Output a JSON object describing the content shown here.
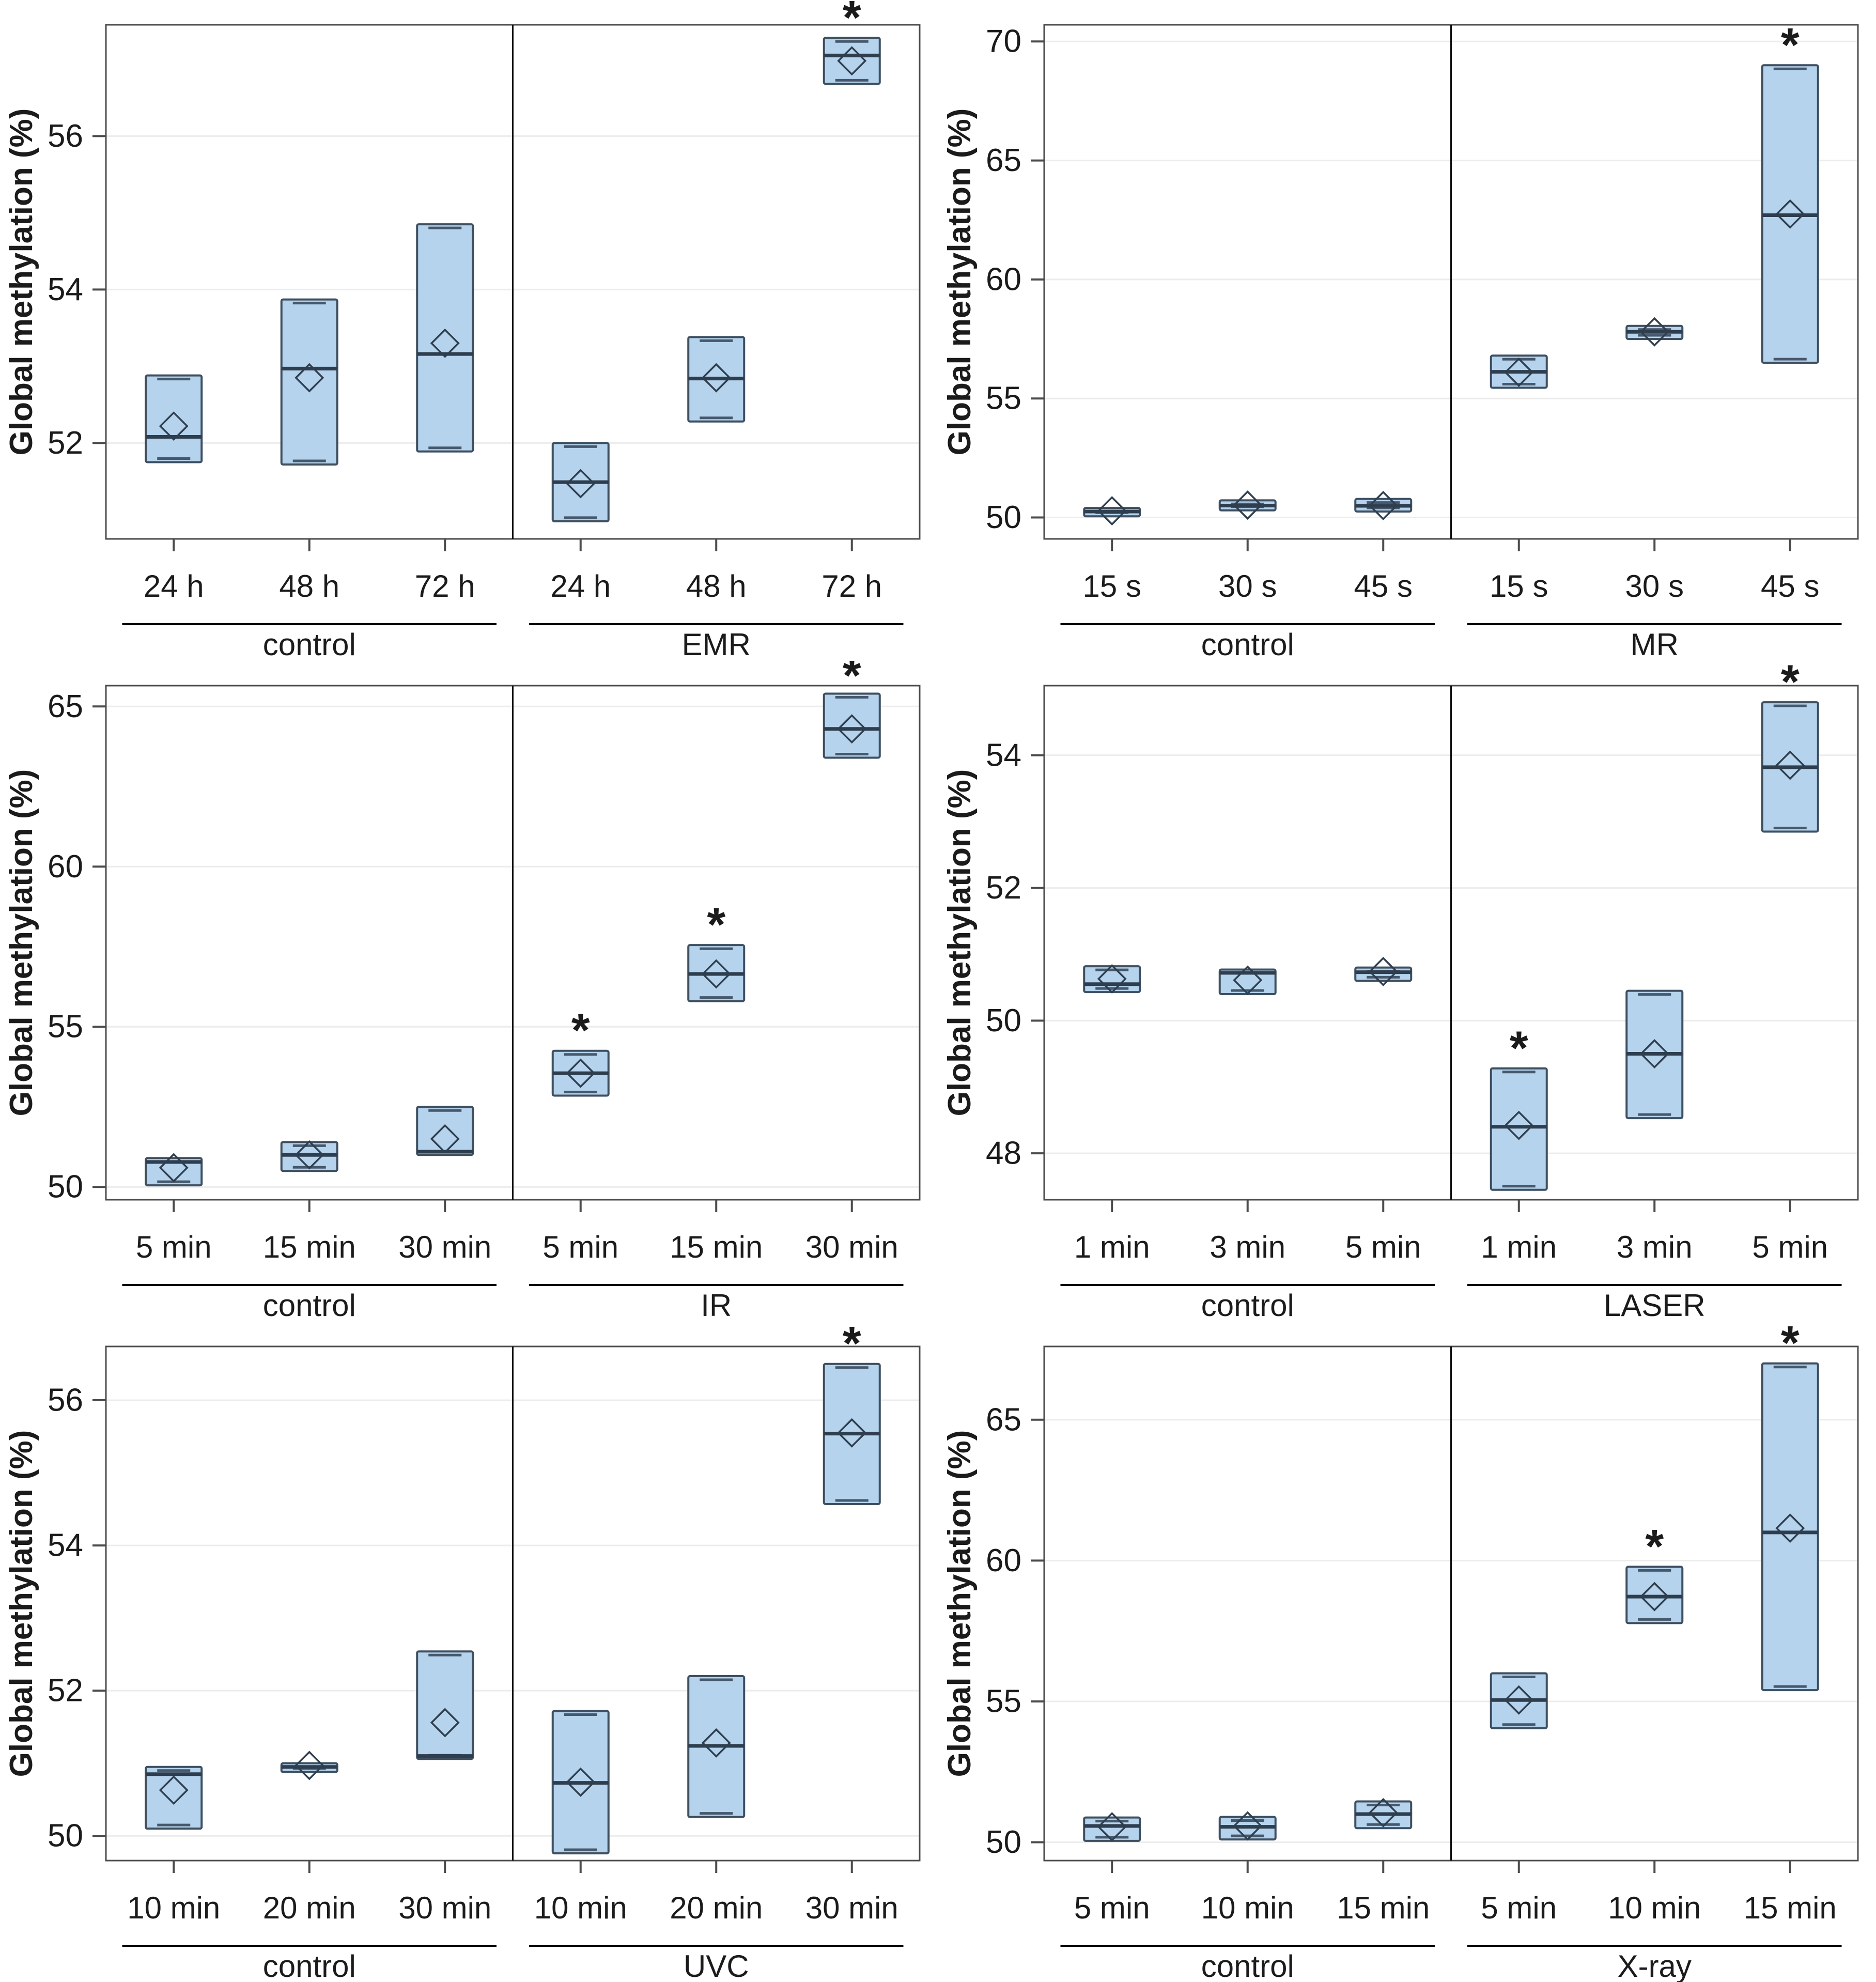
{
  "page": {
    "background": "#ffffff"
  },
  "style": {
    "box_fill": "#b5d3ed",
    "box_stroke": "#3e4f60",
    "median_color": "#2e3e4e",
    "whisker_color": "#46586c",
    "mean_marker": "diamond-outline",
    "grid_color": "#ececec",
    "frame_color": "#4c4c4c",
    "separator_color": "#111111",
    "text_color": "#1b1b1b",
    "sig_marker": "*"
  },
  "chart_data": [
    {
      "type": "box",
      "id": "emr",
      "ylabel": "Global methylation (%)",
      "yticks": [
        52,
        54,
        56
      ],
      "ylim": [
        50.75,
        57.45
      ],
      "grid": true,
      "groups": [
        {
          "label": "control",
          "categories": [
            "24 h",
            "48 h",
            "72 h"
          ]
        },
        {
          "label": "EMR",
          "categories": [
            "24 h",
            "48 h",
            "72 h"
          ]
        }
      ],
      "boxes": [
        {
          "group": "control",
          "category": "24 h",
          "low": 51.75,
          "median": 52.08,
          "high": 52.88,
          "mean": 52.22,
          "significant": false
        },
        {
          "group": "control",
          "category": "48 h",
          "low": 51.72,
          "median": 52.97,
          "high": 53.87,
          "mean": 52.85,
          "significant": false
        },
        {
          "group": "control",
          "category": "72 h",
          "low": 51.89,
          "median": 53.16,
          "high": 54.85,
          "mean": 53.3,
          "significant": false
        },
        {
          "group": "EMR",
          "category": "24 h",
          "low": 50.98,
          "median": 51.49,
          "high": 52.0,
          "mean": 51.47,
          "significant": false
        },
        {
          "group": "EMR",
          "category": "48 h",
          "low": 52.28,
          "median": 52.84,
          "high": 53.38,
          "mean": 52.85,
          "significant": false
        },
        {
          "group": "EMR",
          "category": "72 h",
          "low": 56.68,
          "median": 57.05,
          "high": 57.28,
          "mean": 56.98,
          "significant": true
        }
      ]
    },
    {
      "type": "box",
      "id": "mr",
      "ylabel": "Global methylation (%)",
      "yticks": [
        50,
        55,
        60,
        65,
        70
      ],
      "ylim": [
        49.1,
        70.7
      ],
      "grid": true,
      "groups": [
        {
          "label": "control",
          "categories": [
            "15 s",
            "30 s",
            "45 s"
          ]
        },
        {
          "label": "MR",
          "categories": [
            "15 s",
            "30 s",
            "45 s"
          ]
        }
      ],
      "boxes": [
        {
          "group": "control",
          "category": "15 s",
          "low": 50.05,
          "median": 50.25,
          "high": 50.4,
          "mean": 50.28,
          "significant": false
        },
        {
          "group": "control",
          "category": "30 s",
          "low": 50.3,
          "median": 50.5,
          "high": 50.72,
          "mean": 50.52,
          "significant": false
        },
        {
          "group": "control",
          "category": "45 s",
          "low": 50.25,
          "median": 50.49,
          "high": 50.78,
          "mean": 50.5,
          "significant": false
        },
        {
          "group": "MR",
          "category": "15 s",
          "low": 55.45,
          "median": 56.12,
          "high": 56.8,
          "mean": 56.1,
          "significant": false
        },
        {
          "group": "MR",
          "category": "30 s",
          "low": 57.5,
          "median": 57.8,
          "high": 58.05,
          "mean": 57.8,
          "significant": false
        },
        {
          "group": "MR",
          "category": "45 s",
          "low": 56.5,
          "median": 62.7,
          "high": 69.0,
          "mean": 62.75,
          "significant": true
        }
      ]
    },
    {
      "type": "box",
      "id": "ir",
      "ylabel": "Global methylation (%)",
      "yticks": [
        50,
        55,
        60,
        65
      ],
      "ylim": [
        49.6,
        65.65
      ],
      "grid": true,
      "groups": [
        {
          "label": "control",
          "categories": [
            "5 min",
            "15 min",
            "30 min"
          ]
        },
        {
          "label": "IR",
          "categories": [
            "5 min",
            "15 min",
            "30 min"
          ]
        }
      ],
      "boxes": [
        {
          "group": "control",
          "category": "5 min",
          "low": 50.05,
          "median": 50.78,
          "high": 50.9,
          "mean": 50.6,
          "significant": false
        },
        {
          "group": "control",
          "category": "15 min",
          "low": 50.5,
          "median": 51.0,
          "high": 51.4,
          "mean": 51.0,
          "significant": false
        },
        {
          "group": "control",
          "category": "30 min",
          "low": 51.0,
          "median": 51.1,
          "high": 52.5,
          "mean": 51.5,
          "significant": false
        },
        {
          "group": "IR",
          "category": "5 min",
          "low": 52.85,
          "median": 53.55,
          "high": 54.25,
          "mean": 53.55,
          "significant": true
        },
        {
          "group": "IR",
          "category": "15 min",
          "low": 55.8,
          "median": 56.65,
          "high": 57.55,
          "mean": 56.65,
          "significant": true
        },
        {
          "group": "IR",
          "category": "30 min",
          "low": 63.4,
          "median": 64.3,
          "high": 65.4,
          "mean": 64.3,
          "significant": true
        }
      ]
    },
    {
      "type": "box",
      "id": "laser",
      "ylabel": "Global methylation (%)",
      "yticks": [
        48,
        50,
        52,
        54
      ],
      "ylim": [
        47.3,
        55.05
      ],
      "grid": true,
      "groups": [
        {
          "label": "control",
          "categories": [
            "1 min",
            "3 min",
            "5 min"
          ]
        },
        {
          "label": "LASER",
          "categories": [
            "1 min",
            "3 min",
            "5 min"
          ]
        }
      ],
      "boxes": [
        {
          "group": "control",
          "category": "1 min",
          "low": 50.43,
          "median": 50.55,
          "high": 50.82,
          "mean": 50.63,
          "significant": false
        },
        {
          "group": "control",
          "category": "3 min",
          "low": 50.4,
          "median": 50.72,
          "high": 50.77,
          "mean": 50.61,
          "significant": false
        },
        {
          "group": "control",
          "category": "5 min",
          "low": 50.6,
          "median": 50.73,
          "high": 50.8,
          "mean": 50.74,
          "significant": false
        },
        {
          "group": "LASER",
          "category": "1 min",
          "low": 47.45,
          "median": 48.4,
          "high": 49.28,
          "mean": 48.42,
          "significant": true
        },
        {
          "group": "LASER",
          "category": "3 min",
          "low": 48.53,
          "median": 49.5,
          "high": 50.45,
          "mean": 49.5,
          "significant": false
        },
        {
          "group": "LASER",
          "category": "5 min",
          "low": 52.85,
          "median": 53.82,
          "high": 54.8,
          "mean": 53.85,
          "significant": true
        }
      ]
    },
    {
      "type": "box",
      "id": "uvc",
      "ylabel": "Global methylation (%)",
      "yticks": [
        50,
        52,
        54,
        56
      ],
      "ylim": [
        49.66,
        56.74
      ],
      "grid": true,
      "groups": [
        {
          "label": "control",
          "categories": [
            "10 min",
            "20 min",
            "30 min"
          ]
        },
        {
          "label": "UVC",
          "categories": [
            "10 min",
            "20 min",
            "30 min"
          ]
        }
      ],
      "boxes": [
        {
          "group": "control",
          "category": "10 min",
          "low": 50.1,
          "median": 50.85,
          "high": 50.95,
          "mean": 50.63,
          "significant": false
        },
        {
          "group": "control",
          "category": "20 min",
          "low": 50.88,
          "median": 50.95,
          "high": 51.0,
          "mean": 50.97,
          "significant": false
        },
        {
          "group": "control",
          "category": "30 min",
          "low": 51.06,
          "median": 51.1,
          "high": 52.54,
          "mean": 51.56,
          "significant": false
        },
        {
          "group": "UVC",
          "category": "10 min",
          "low": 49.76,
          "median": 50.73,
          "high": 51.72,
          "mean": 50.74,
          "significant": false
        },
        {
          "group": "UVC",
          "category": "20 min",
          "low": 50.26,
          "median": 51.24,
          "high": 52.2,
          "mean": 51.28,
          "significant": false
        },
        {
          "group": "UVC",
          "category": "30 min",
          "low": 54.57,
          "median": 55.54,
          "high": 56.5,
          "mean": 55.55,
          "significant": true
        }
      ]
    },
    {
      "type": "box",
      "id": "xray",
      "ylabel": "Global methylation (%)",
      "yticks": [
        50,
        55,
        60,
        65
      ],
      "ylim": [
        49.35,
        67.6
      ],
      "grid": true,
      "groups": [
        {
          "label": "control",
          "categories": [
            "5 min",
            "10 min",
            "15 min"
          ]
        },
        {
          "label": "X-ray",
          "categories": [
            "5 min",
            "10 min",
            "15 min"
          ]
        }
      ],
      "boxes": [
        {
          "group": "control",
          "category": "5 min",
          "low": 50.05,
          "median": 50.58,
          "high": 50.88,
          "mean": 50.55,
          "significant": false
        },
        {
          "group": "control",
          "category": "10 min",
          "low": 50.1,
          "median": 50.55,
          "high": 50.9,
          "mean": 50.58,
          "significant": false
        },
        {
          "group": "control",
          "category": "15 min",
          "low": 50.5,
          "median": 51.0,
          "high": 51.45,
          "mean": 51.05,
          "significant": false
        },
        {
          "group": "X-ray",
          "category": "5 min",
          "low": 54.05,
          "median": 55.05,
          "high": 56.0,
          "mean": 55.05,
          "significant": false
        },
        {
          "group": "X-ray",
          "category": "10 min",
          "low": 57.78,
          "median": 58.72,
          "high": 59.78,
          "mean": 58.72,
          "significant": true
        },
        {
          "group": "X-ray",
          "category": "15 min",
          "low": 55.4,
          "median": 61.0,
          "high": 67.0,
          "mean": 61.15,
          "significant": true
        }
      ]
    }
  ]
}
